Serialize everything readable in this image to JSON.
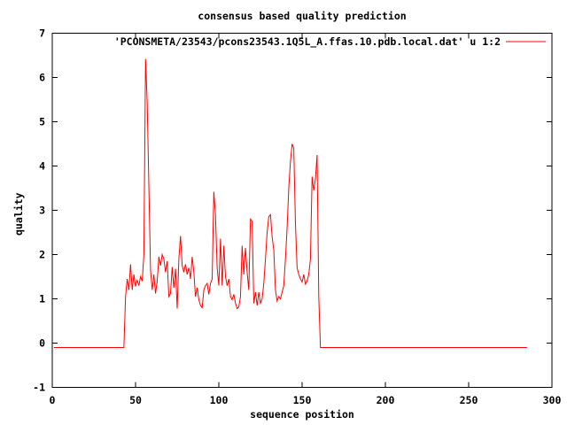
{
  "window": {
    "background": "#ffffff"
  },
  "chart_data": {
    "type": "line",
    "title": "consensus based quality prediction",
    "xlabel": "sequence position",
    "ylabel": "quality",
    "xlim": [
      0,
      300
    ],
    "ylim": [
      -1,
      7
    ],
    "x_ticks": [
      0,
      50,
      100,
      150,
      200,
      250,
      300
    ],
    "y_ticks": [
      -1,
      0,
      1,
      2,
      3,
      4,
      5,
      6,
      7
    ],
    "grid": false,
    "legend": {
      "label": "'PCONSMETA/23543/pcons23543.1Q5L_A.ffas.10.pdb.local.dat' u 1:2",
      "position": "top-right-inside",
      "sample_color": "#ff0000"
    },
    "colors": {
      "line": "#ff0000",
      "axis": "#000000",
      "text": "#000000",
      "background": "#ffffff"
    },
    "series": [
      {
        "name": "PCONSMETA/23543/pcons23543.1Q5L_A.ffas.10.pdb.local.dat u 1:2",
        "color": "#ff0000",
        "points": [
          [
            1,
            -0.1
          ],
          [
            43,
            -0.1
          ],
          [
            44,
            1.05
          ],
          [
            45,
            1.45
          ],
          [
            46,
            1.2
          ],
          [
            47,
            1.78
          ],
          [
            48,
            1.2
          ],
          [
            49,
            1.55
          ],
          [
            50,
            1.28
          ],
          [
            51,
            1.42
          ],
          [
            52,
            1.3
          ],
          [
            53,
            1.5
          ],
          [
            54,
            1.4
          ],
          [
            55,
            2.0
          ],
          [
            56,
            6.42
          ],
          [
            57,
            5.44
          ],
          [
            58,
            3.54
          ],
          [
            59,
            1.65
          ],
          [
            60,
            1.2
          ],
          [
            61,
            1.55
          ],
          [
            62,
            1.12
          ],
          [
            63,
            1.4
          ],
          [
            64,
            1.95
          ],
          [
            65,
            1.75
          ],
          [
            66,
            2.0
          ],
          [
            67,
            1.9
          ],
          [
            68,
            1.6
          ],
          [
            69,
            1.85
          ],
          [
            70,
            1.05
          ],
          [
            71,
            1.12
          ],
          [
            72,
            1.72
          ],
          [
            73,
            1.25
          ],
          [
            74,
            1.68
          ],
          [
            75,
            0.78
          ],
          [
            76,
            1.9
          ],
          [
            77,
            2.42
          ],
          [
            78,
            1.75
          ],
          [
            79,
            1.6
          ],
          [
            80,
            1.78
          ],
          [
            81,
            1.55
          ],
          [
            82,
            1.7
          ],
          [
            83,
            1.45
          ],
          [
            84,
            1.95
          ],
          [
            85,
            1.6
          ],
          [
            86,
            1.05
          ],
          [
            87,
            1.25
          ],
          [
            88,
            0.98
          ],
          [
            89,
            0.85
          ],
          [
            90,
            0.8
          ],
          [
            91,
            1.2
          ],
          [
            92,
            1.3
          ],
          [
            93,
            1.35
          ],
          [
            94,
            1.1
          ],
          [
            95,
            1.35
          ],
          [
            96,
            1.45
          ],
          [
            97,
            3.42
          ],
          [
            98,
            2.88
          ],
          [
            99,
            1.7
          ],
          [
            100,
            1.3
          ],
          [
            101,
            2.36
          ],
          [
            102,
            1.3
          ],
          [
            103,
            2.2
          ],
          [
            104,
            1.5
          ],
          [
            105,
            1.3
          ],
          [
            106,
            1.45
          ],
          [
            107,
            1.05
          ],
          [
            108,
            0.98
          ],
          [
            109,
            1.1
          ],
          [
            110,
            0.9
          ],
          [
            111,
            0.78
          ],
          [
            112,
            0.82
          ],
          [
            113,
            1.05
          ],
          [
            114,
            2.2
          ],
          [
            115,
            1.55
          ],
          [
            116,
            2.15
          ],
          [
            117,
            1.6
          ],
          [
            118,
            1.2
          ],
          [
            119,
            2.8
          ],
          [
            120,
            2.75
          ],
          [
            121,
            0.9
          ],
          [
            122,
            1.15
          ],
          [
            123,
            0.85
          ],
          [
            124,
            1.15
          ],
          [
            125,
            0.9
          ],
          [
            126,
            1.0
          ],
          [
            127,
            1.35
          ],
          [
            128,
            1.9
          ],
          [
            129,
            2.5
          ],
          [
            130,
            2.86
          ],
          [
            131,
            2.9
          ],
          [
            132,
            2.4
          ],
          [
            133,
            2.1
          ],
          [
            134,
            1.2
          ],
          [
            135,
            0.95
          ],
          [
            136,
            1.05
          ],
          [
            137,
            1.0
          ],
          [
            138,
            1.15
          ],
          [
            139,
            1.3
          ],
          [
            140,
            1.9
          ],
          [
            141,
            2.6
          ],
          [
            142,
            3.5
          ],
          [
            143,
            4.1
          ],
          [
            144,
            4.5
          ],
          [
            145,
            4.4
          ],
          [
            146,
            2.7
          ],
          [
            147,
            1.7
          ],
          [
            148,
            1.55
          ],
          [
            149,
            1.45
          ],
          [
            150,
            1.38
          ],
          [
            151,
            1.55
          ],
          [
            152,
            1.33
          ],
          [
            153,
            1.4
          ],
          [
            154,
            1.55
          ],
          [
            155,
            1.9
          ],
          [
            156,
            3.76
          ],
          [
            157,
            3.45
          ],
          [
            158,
            3.7
          ],
          [
            159,
            4.25
          ],
          [
            160,
            1.06
          ],
          [
            161,
            -0.1
          ],
          [
            285,
            -0.1
          ]
        ]
      }
    ]
  }
}
